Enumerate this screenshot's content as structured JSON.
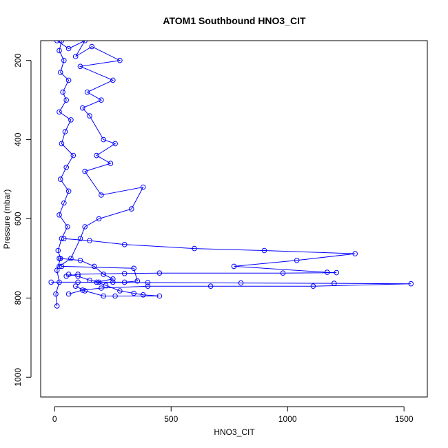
{
  "chart_data": {
    "type": "line",
    "title": "ATOM1 Southbound HNO3_CIT",
    "xlabel": "HNO3_CIT",
    "ylabel": "Pressure (mbar)",
    "xlim": [
      -60,
      1600
    ],
    "ylim": [
      1050,
      150
    ],
    "y_reversed": true,
    "x_ticks": [
      0,
      500,
      1000,
      1500
    ],
    "y_ticks": [
      200,
      400,
      600,
      800,
      1000
    ],
    "color": "#0000ff",
    "marker": "open-circle",
    "grid": false,
    "series": [
      {
        "values": [
          [
            30,
            150
          ],
          [
            20,
            175
          ],
          [
            40,
            200
          ],
          [
            25,
            230
          ],
          [
            60,
            250
          ],
          [
            35,
            280
          ],
          [
            50,
            300
          ],
          [
            20,
            330
          ],
          [
            70,
            350
          ],
          [
            45,
            380
          ],
          [
            30,
            410
          ],
          [
            80,
            440
          ],
          [
            50,
            470
          ],
          [
            25,
            500
          ],
          [
            60,
            530
          ],
          [
            40,
            560
          ],
          [
            20,
            590
          ],
          [
            55,
            620
          ],
          [
            30,
            650
          ],
          [
            15,
            680
          ],
          [
            25,
            700
          ],
          [
            10,
            730
          ],
          [
            20,
            760
          ],
          [
            5,
            790
          ],
          [
            10,
            820
          ]
        ]
      },
      {
        "values": [
          [
            10,
            150
          ],
          [
            60,
            170
          ],
          [
            130,
            150
          ],
          [
            90,
            190
          ],
          [
            160,
            165
          ],
          [
            280,
            200
          ],
          [
            110,
            215
          ],
          [
            250,
            250
          ],
          [
            140,
            280
          ],
          [
            200,
            300
          ],
          [
            120,
            320
          ],
          [
            150,
            340
          ],
          [
            210,
            400
          ],
          [
            260,
            410
          ],
          [
            180,
            440
          ],
          [
            240,
            460
          ],
          [
            130,
            480
          ],
          [
            200,
            540
          ],
          [
            380,
            520
          ],
          [
            330,
            575
          ],
          [
            190,
            600
          ],
          [
            130,
            620
          ],
          [
            110,
            650
          ],
          [
            70,
            700
          ],
          [
            20,
            720
          ]
        ]
      },
      {
        "values": [
          [
            40,
            650
          ],
          [
            150,
            655
          ],
          [
            300,
            665
          ],
          [
            600,
            675
          ],
          [
            900,
            680
          ],
          [
            1290,
            688
          ],
          [
            1040,
            705
          ],
          [
            770,
            720
          ],
          [
            1170,
            735
          ],
          [
            1210,
            736
          ],
          [
            980,
            737
          ],
          [
            450,
            737
          ],
          [
            300,
            738
          ],
          [
            100,
            740
          ],
          [
            50,
            745
          ]
        ]
      },
      {
        "values": [
          [
            -15,
            760
          ],
          [
            100,
            760
          ],
          [
            400,
            761
          ],
          [
            800,
            762
          ],
          [
            1200,
            763
          ],
          [
            1530,
            764
          ],
          [
            1110,
            770
          ],
          [
            670,
            770
          ],
          [
            400,
            770
          ],
          [
            200,
            775
          ],
          [
            120,
            780
          ],
          [
            60,
            790
          ]
        ]
      },
      {
        "values": [
          [
            20,
            700
          ],
          [
            110,
            705
          ],
          [
            170,
            720
          ],
          [
            210,
            740
          ],
          [
            250,
            752
          ],
          [
            180,
            760
          ],
          [
            220,
            768
          ],
          [
            280,
            782
          ],
          [
            340,
            788
          ],
          [
            380,
            792
          ],
          [
            450,
            795
          ],
          [
            260,
            795
          ],
          [
            210,
            795
          ],
          [
            130,
            782
          ],
          [
            90,
            770
          ]
        ]
      },
      {
        "values": [
          [
            30,
            720
          ],
          [
            340,
            725
          ],
          [
            355,
            757
          ],
          [
            300,
            760
          ],
          [
            250,
            760
          ],
          [
            190,
            760
          ],
          [
            150,
            755
          ],
          [
            100,
            745
          ],
          [
            60,
            740
          ]
        ]
      }
    ]
  }
}
